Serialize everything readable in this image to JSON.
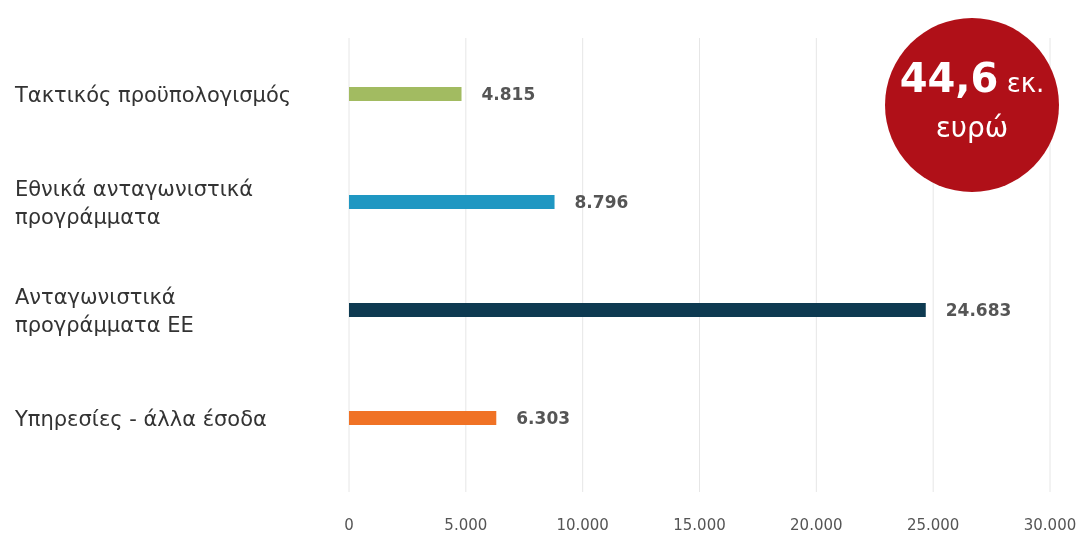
{
  "chart_data": {
    "type": "bar",
    "orientation": "horizontal",
    "categories": [
      "Τακτικός προϋπολογισμός",
      "Εθνικά ανταγωνιστικά προγράμματα",
      "Ανταγωνιστικά προγράμματα ΕΕ",
      "Υπηρεσίες - άλλα έσοδα"
    ],
    "values": [
      4815,
      8796,
      24683,
      6303
    ],
    "colors": [
      "#a2bb61",
      "#1f97c2",
      "#0e3a51",
      "#f07225"
    ],
    "value_labels": [
      "4.815",
      "8.796",
      "24.683",
      "6.303"
    ],
    "xlim": [
      0,
      30000
    ],
    "xticks": [
      0,
      {
        "value": 5000,
        "label": "5.000"
      },
      {
        "value": 10000,
        "label": "10.000"
      },
      {
        "value": 15000,
        "label": "15.000"
      },
      {
        "value": 20000,
        "label": "20.000"
      },
      {
        "value": 25000,
        "label": "25.000"
      },
      {
        "value": 30000,
        "label": "30.000"
      }
    ],
    "grid": "x",
    "annotations": [
      "44,6 εκ. ευρώ"
    ]
  }
}
